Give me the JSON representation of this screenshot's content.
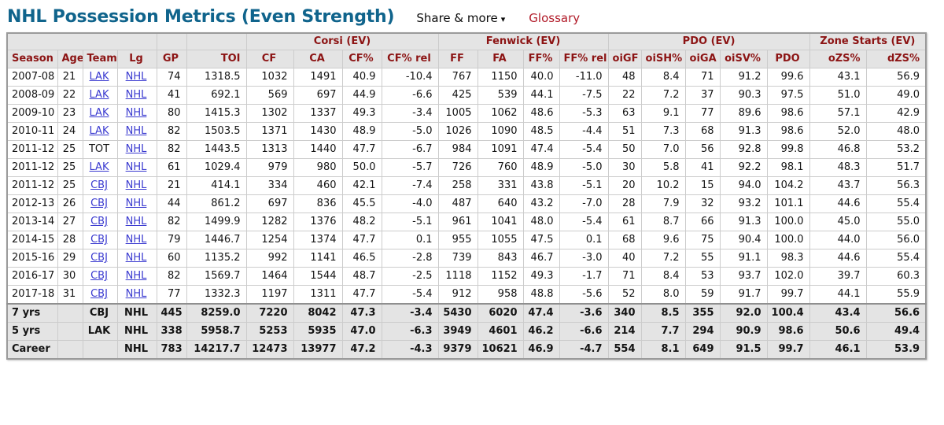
{
  "page": {
    "title": "NHL Possession Metrics (Even Strength)",
    "share_label": "Share & more",
    "share_arrow": "▾",
    "glossary_label": "Glossary"
  },
  "colors": {
    "title": "#10648c",
    "header_text": "#8c1414",
    "link": "#3a3ad0",
    "glossary": "#b11a28",
    "header_bg": "#e4e4e4"
  },
  "table": {
    "group_headers": [
      {
        "label": "",
        "span": 4
      },
      {
        "label": "",
        "span": 1
      },
      {
        "label": "",
        "span": 1
      },
      {
        "label": "Corsi (EV)",
        "span": 4
      },
      {
        "label": "Fenwick (EV)",
        "span": 4
      },
      {
        "label": "PDO (EV)",
        "span": 5
      },
      {
        "label": "Zone Starts (EV)",
        "span": 2
      }
    ],
    "columns": [
      "Season",
      "Age",
      "Team",
      "Lg",
      "GP",
      "TOI",
      "CF",
      "CA",
      "CF%",
      "CF% rel",
      "FF",
      "FA",
      "FF%",
      "FF% rel",
      "oiGF",
      "oiSH%",
      "oiGA",
      "oiSV%",
      "PDO",
      "oZS%",
      "dZS%"
    ],
    "rows": [
      {
        "season": "2007-08",
        "age": "21",
        "team": "LAK",
        "team_link": true,
        "lg": "NHL",
        "values": [
          "74",
          "1318.5",
          "1032",
          "1491",
          "40.9",
          "-10.4",
          "767",
          "1150",
          "40.0",
          "-11.0",
          "48",
          "8.4",
          "71",
          "91.2",
          "99.6",
          "43.1",
          "56.9"
        ]
      },
      {
        "season": "2008-09",
        "age": "22",
        "team": "LAK",
        "team_link": true,
        "lg": "NHL",
        "values": [
          "41",
          "692.1",
          "569",
          "697",
          "44.9",
          "-6.6",
          "425",
          "539",
          "44.1",
          "-7.5",
          "22",
          "7.2",
          "37",
          "90.3",
          "97.5",
          "51.0",
          "49.0"
        ]
      },
      {
        "season": "2009-10",
        "age": "23",
        "team": "LAK",
        "team_link": true,
        "lg": "NHL",
        "values": [
          "80",
          "1415.3",
          "1302",
          "1337",
          "49.3",
          "-3.4",
          "1005",
          "1062",
          "48.6",
          "-5.3",
          "63",
          "9.1",
          "77",
          "89.6",
          "98.6",
          "57.1",
          "42.9"
        ]
      },
      {
        "season": "2010-11",
        "age": "24",
        "team": "LAK",
        "team_link": true,
        "lg": "NHL",
        "values": [
          "82",
          "1503.5",
          "1371",
          "1430",
          "48.9",
          "-5.0",
          "1026",
          "1090",
          "48.5",
          "-4.4",
          "51",
          "7.3",
          "68",
          "91.3",
          "98.6",
          "52.0",
          "48.0"
        ]
      },
      {
        "season": "2011-12",
        "age": "25",
        "team": "TOT",
        "team_link": false,
        "lg": "NHL",
        "values": [
          "82",
          "1443.5",
          "1313",
          "1440",
          "47.7",
          "-6.7",
          "984",
          "1091",
          "47.4",
          "-5.4",
          "50",
          "7.0",
          "56",
          "92.8",
          "99.8",
          "46.8",
          "53.2"
        ]
      },
      {
        "season": "2011-12",
        "age": "25",
        "team": "LAK",
        "team_link": true,
        "lg": "NHL",
        "values": [
          "61",
          "1029.4",
          "979",
          "980",
          "50.0",
          "-5.7",
          "726",
          "760",
          "48.9",
          "-5.0",
          "30",
          "5.8",
          "41",
          "92.2",
          "98.1",
          "48.3",
          "51.7"
        ]
      },
      {
        "season": "2011-12",
        "age": "25",
        "team": "CBJ",
        "team_link": true,
        "lg": "NHL",
        "values": [
          "21",
          "414.1",
          "334",
          "460",
          "42.1",
          "-7.4",
          "258",
          "331",
          "43.8",
          "-5.1",
          "20",
          "10.2",
          "15",
          "94.0",
          "104.2",
          "43.7",
          "56.3"
        ]
      },
      {
        "season": "2012-13",
        "age": "26",
        "team": "CBJ",
        "team_link": true,
        "lg": "NHL",
        "values": [
          "44",
          "861.2",
          "697",
          "836",
          "45.5",
          "-4.0",
          "487",
          "640",
          "43.2",
          "-7.0",
          "28",
          "7.9",
          "32",
          "93.2",
          "101.1",
          "44.6",
          "55.4"
        ]
      },
      {
        "season": "2013-14",
        "age": "27",
        "team": "CBJ",
        "team_link": true,
        "lg": "NHL",
        "values": [
          "82",
          "1499.9",
          "1282",
          "1376",
          "48.2",
          "-5.1",
          "961",
          "1041",
          "48.0",
          "-5.4",
          "61",
          "8.7",
          "66",
          "91.3",
          "100.0",
          "45.0",
          "55.0"
        ]
      },
      {
        "season": "2014-15",
        "age": "28",
        "team": "CBJ",
        "team_link": true,
        "lg": "NHL",
        "values": [
          "79",
          "1446.7",
          "1254",
          "1374",
          "47.7",
          "0.1",
          "955",
          "1055",
          "47.5",
          "0.1",
          "68",
          "9.6",
          "75",
          "90.4",
          "100.0",
          "44.0",
          "56.0"
        ]
      },
      {
        "season": "2015-16",
        "age": "29",
        "team": "CBJ",
        "team_link": true,
        "lg": "NHL",
        "values": [
          "60",
          "1135.2",
          "992",
          "1141",
          "46.5",
          "-2.8",
          "739",
          "843",
          "46.7",
          "-3.0",
          "40",
          "7.2",
          "55",
          "91.1",
          "98.3",
          "44.6",
          "55.4"
        ]
      },
      {
        "season": "2016-17",
        "age": "30",
        "team": "CBJ",
        "team_link": true,
        "lg": "NHL",
        "values": [
          "82",
          "1569.7",
          "1464",
          "1544",
          "48.7",
          "-2.5",
          "1118",
          "1152",
          "49.3",
          "-1.7",
          "71",
          "8.4",
          "53",
          "93.7",
          "102.0",
          "39.7",
          "60.3"
        ]
      },
      {
        "season": "2017-18",
        "age": "31",
        "team": "CBJ",
        "team_link": true,
        "lg": "NHL",
        "values": [
          "77",
          "1332.3",
          "1197",
          "1311",
          "47.7",
          "-5.4",
          "912",
          "958",
          "48.8",
          "-5.6",
          "52",
          "8.0",
          "59",
          "91.7",
          "99.7",
          "44.1",
          "55.9"
        ]
      }
    ],
    "summary_rows": [
      {
        "label": "7 yrs",
        "age": "",
        "team": "CBJ",
        "lg": "NHL",
        "values": [
          "445",
          "8259.0",
          "7220",
          "8042",
          "47.3",
          "-3.4",
          "5430",
          "6020",
          "47.4",
          "-3.6",
          "340",
          "8.5",
          "355",
          "92.0",
          "100.4",
          "43.4",
          "56.6"
        ]
      },
      {
        "label": "5 yrs",
        "age": "",
        "team": "LAK",
        "lg": "NHL",
        "values": [
          "338",
          "5958.7",
          "5253",
          "5935",
          "47.0",
          "-6.3",
          "3949",
          "4601",
          "46.2",
          "-6.6",
          "214",
          "7.7",
          "294",
          "90.9",
          "98.6",
          "50.6",
          "49.4"
        ]
      },
      {
        "label": "Career",
        "age": "",
        "team": "",
        "lg": "NHL",
        "values": [
          "783",
          "14217.7",
          "12473",
          "13977",
          "47.2",
          "-4.3",
          "9379",
          "10621",
          "46.9",
          "-4.7",
          "554",
          "8.1",
          "649",
          "91.5",
          "99.7",
          "46.1",
          "53.9"
        ]
      }
    ]
  }
}
